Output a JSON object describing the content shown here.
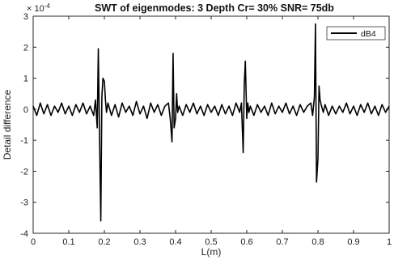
{
  "chart_data": {
    "type": "line",
    "title": "SWT of eigenmodes: 3   Depth Cr= 30%   SNR= 75db",
    "xlabel": "L(m)",
    "ylabel": "Detail difference",
    "xlim": [
      0,
      1
    ],
    "ylim": [
      -4,
      3
    ],
    "y_exponent_label": "× 10",
    "y_exponent_power": "-4",
    "x_ticks": [
      "0",
      "0.1",
      "0.2",
      "0.3",
      "0.4",
      "0.5",
      "0.6",
      "0.7",
      "0.8",
      "0.9",
      "1"
    ],
    "y_ticks": [
      "-4",
      "-3",
      "-2",
      "-1",
      "0",
      "1",
      "2",
      "3"
    ],
    "grid": false,
    "legend_position": "top-right",
    "series": [
      {
        "name": "dB4",
        "color": "#000000",
        "x": [
          0,
          0.01,
          0.02,
          0.03,
          0.04,
          0.05,
          0.06,
          0.07,
          0.08,
          0.09,
          0.1,
          0.11,
          0.12,
          0.13,
          0.14,
          0.15,
          0.16,
          0.17,
          0.175,
          0.18,
          0.183,
          0.186,
          0.19,
          0.193,
          0.196,
          0.2,
          0.203,
          0.206,
          0.21,
          0.22,
          0.23,
          0.24,
          0.25,
          0.26,
          0.27,
          0.28,
          0.29,
          0.3,
          0.31,
          0.32,
          0.33,
          0.34,
          0.35,
          0.36,
          0.37,
          0.38,
          0.385,
          0.39,
          0.393,
          0.396,
          0.4,
          0.403,
          0.406,
          0.41,
          0.42,
          0.43,
          0.44,
          0.45,
          0.46,
          0.47,
          0.48,
          0.49,
          0.5,
          0.51,
          0.52,
          0.53,
          0.54,
          0.55,
          0.56,
          0.57,
          0.58,
          0.585,
          0.59,
          0.593,
          0.596,
          0.6,
          0.603,
          0.606,
          0.61,
          0.62,
          0.63,
          0.64,
          0.65,
          0.66,
          0.67,
          0.68,
          0.69,
          0.7,
          0.71,
          0.72,
          0.73,
          0.74,
          0.75,
          0.76,
          0.77,
          0.78,
          0.785,
          0.79,
          0.793,
          0.796,
          0.8,
          0.803,
          0.806,
          0.81,
          0.815,
          0.82,
          0.83,
          0.84,
          0.85,
          0.86,
          0.87,
          0.88,
          0.89,
          0.9,
          0.91,
          0.92,
          0.93,
          0.94,
          0.95,
          0.96,
          0.97,
          0.98,
          0.99,
          1.0
        ],
        "y": [
          0.1,
          -0.2,
          0.2,
          -0.15,
          0.15,
          -0.2,
          0.1,
          -0.1,
          0.2,
          -0.15,
          0.1,
          -0.2,
          0.15,
          -0.1,
          0.2,
          -0.15,
          0.1,
          -0.2,
          0.3,
          -0.6,
          1.95,
          -0.5,
          -3.6,
          0.4,
          1.0,
          0.9,
          0.3,
          -0.1,
          0.2,
          -0.2,
          0.15,
          -0.25,
          0.2,
          -0.1,
          0.1,
          -0.2,
          0.25,
          -0.15,
          0.1,
          -0.3,
          0.2,
          -0.1,
          0.15,
          -0.2,
          0.1,
          0.2,
          -0.3,
          -1.05,
          1.8,
          -0.6,
          -0.3,
          0.5,
          -0.1,
          0.1,
          -0.2,
          0.15,
          -0.1,
          0.2,
          -0.15,
          0.1,
          -0.2,
          0.15,
          -0.1,
          0.1,
          -0.2,
          0.15,
          -0.15,
          0.1,
          -0.2,
          0.2,
          -0.1,
          0.2,
          -1.4,
          0.8,
          1.55,
          -0.3,
          0.2,
          -0.1,
          0.1,
          -0.2,
          0.15,
          -0.1,
          0.1,
          -0.2,
          0.2,
          -0.15,
          0.1,
          -0.1,
          0.2,
          -0.15,
          0.1,
          -0.2,
          0.15,
          -0.1,
          0.1,
          0.2,
          -0.2,
          0.4,
          2.75,
          -2.35,
          -1.6,
          0.75,
          0.3,
          0.1,
          -0.1,
          0.15,
          -0.2,
          0.1,
          -0.15,
          0.1,
          -0.1,
          0.2,
          -0.15,
          0.1,
          -0.2,
          0.15,
          -0.1,
          0.2,
          -0.15,
          0.1,
          -0.2,
          0.15,
          -0.1,
          0.1
        ]
      }
    ]
  }
}
